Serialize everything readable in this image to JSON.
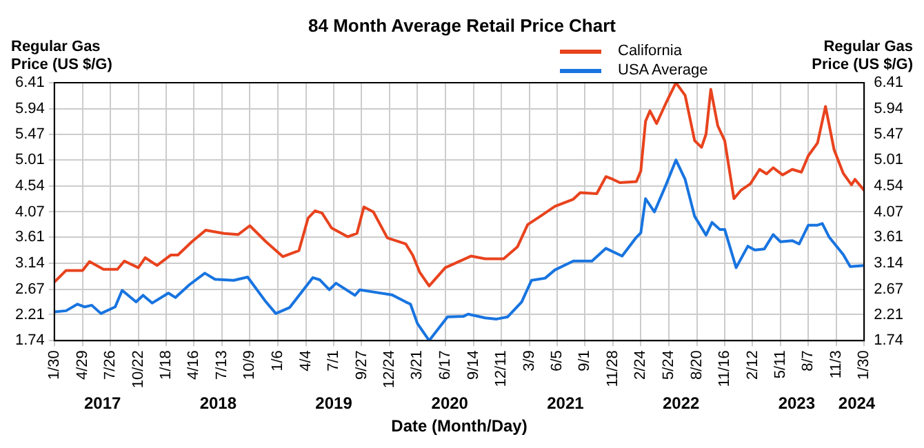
{
  "chart_data": {
    "type": "line",
    "title": "84 Month Average Retail Price Chart",
    "xlabel": "Date (Month/Day)",
    "ylabel": "Regular Gas Price (US $/G)",
    "y2label": "Regular Gas Price (US $/G)",
    "legend": "top",
    "grid": true,
    "marker": "none",
    "line_style": "solid",
    "xlim": [
      "2017-01-30",
      "2024-01-30"
    ],
    "xticks": [
      {
        "value": "2017-01-30",
        "label": "1/30"
      },
      {
        "value": "2017-04-29",
        "label": "4/29"
      },
      {
        "value": "2017-07-26",
        "label": "7/26"
      },
      {
        "value": "2017-10-22",
        "label": "10/22"
      },
      {
        "value": "2018-01-18",
        "label": "1/18"
      },
      {
        "value": "2018-04-16",
        "label": "4/16"
      },
      {
        "value": "2018-07-13",
        "label": "7/13"
      },
      {
        "value": "2018-10-09",
        "label": "10/9"
      },
      {
        "value": "2019-01-06",
        "label": "1/6"
      },
      {
        "value": "2019-04-04",
        "label": "4/4"
      },
      {
        "value": "2019-07-01",
        "label": "7/1"
      },
      {
        "value": "2019-09-27",
        "label": "9/27"
      },
      {
        "value": "2019-12-24",
        "label": "12/24"
      },
      {
        "value": "2020-03-21",
        "label": "3/21"
      },
      {
        "value": "2020-06-17",
        "label": "6/17"
      },
      {
        "value": "2020-09-14",
        "label": "9/14"
      },
      {
        "value": "2020-12-11",
        "label": "12/11"
      },
      {
        "value": "2021-03-09",
        "label": "3/9"
      },
      {
        "value": "2021-06-05",
        "label": "6/5"
      },
      {
        "value": "2021-09-01",
        "label": "9/1"
      },
      {
        "value": "2021-11-28",
        "label": "11/28"
      },
      {
        "value": "2022-02-24",
        "label": "2/24"
      },
      {
        "value": "2022-05-24",
        "label": "5/24"
      },
      {
        "value": "2022-08-20",
        "label": "8/20"
      },
      {
        "value": "2022-11-16",
        "label": "11/16"
      },
      {
        "value": "2023-02-12",
        "label": "2/12"
      },
      {
        "value": "2023-05-11",
        "label": "5/11"
      },
      {
        "value": "2023-08-07",
        "label": "8/7"
      },
      {
        "value": "2023-11-03",
        "label": "11/3"
      },
      {
        "value": "2024-01-30",
        "label": "1/30"
      }
    ],
    "ylim": [
      1.74,
      6.41
    ],
    "yticks": [
      1.74,
      2.21,
      2.67,
      3.14,
      3.61,
      4.07,
      4.54,
      5.01,
      5.47,
      5.94,
      6.41
    ],
    "y2lim": [
      1.74,
      6.41
    ],
    "y2ticks": [
      1.74,
      2.21,
      2.67,
      3.14,
      3.61,
      4.07,
      4.54,
      5.01,
      5.47,
      5.94,
      6.41
    ],
    "annotations": [
      "2017",
      "2018",
      "2019",
      "2020",
      "2021",
      "2022",
      "2023",
      "2024"
    ],
    "series": [
      {
        "name": "California",
        "color": "#e8431e",
        "x": [
          "2017-01-30",
          "2017-03-08",
          "2017-04-29",
          "2017-05-21",
          "2017-07-04",
          "2017-08-17",
          "2017-09-08",
          "2017-10-22",
          "2017-11-13",
          "2017-12-20",
          "2018-02-02",
          "2018-02-24",
          "2018-04-09",
          "2018-05-23",
          "2018-07-20",
          "2018-09-02",
          "2018-10-09",
          "2018-11-29",
          "2019-01-21",
          "2019-03-13",
          "2019-04-11",
          "2019-05-03",
          "2019-05-25",
          "2019-06-24",
          "2019-08-14",
          "2019-09-12",
          "2019-10-04",
          "2019-11-03",
          "2019-12-17",
          "2020-02-13",
          "2020-03-06",
          "2020-03-28",
          "2020-04-27",
          "2020-06-17",
          "2020-09-06",
          "2020-10-21",
          "2020-12-18",
          "2021-01-31",
          "2021-03-04",
          "2021-04-15",
          "2021-05-29",
          "2021-07-26",
          "2021-08-17",
          "2021-10-08",
          "2021-11-06",
          "2021-11-28",
          "2021-12-20",
          "2022-02-10",
          "2022-02-24",
          "2022-03-11",
          "2022-03-25",
          "2022-04-15",
          "2022-05-16",
          "2022-06-15",
          "2022-07-14",
          "2022-08-13",
          "2022-09-04",
          "2022-09-18",
          "2022-10-03",
          "2022-10-25",
          "2022-11-16",
          "2022-12-15",
          "2023-01-06",
          "2023-02-05",
          "2023-03-06",
          "2023-03-28",
          "2023-04-18",
          "2023-05-18",
          "2023-06-17",
          "2023-07-16",
          "2023-08-07",
          "2023-09-05",
          "2023-09-30",
          "2023-10-27",
          "2023-11-25",
          "2023-12-21",
          "2024-01-01",
          "2024-01-30"
        ],
        "values": [
          2.8,
          3.01,
          3.01,
          3.17,
          3.03,
          3.03,
          3.18,
          3.06,
          3.24,
          3.1,
          3.29,
          3.29,
          3.53,
          3.74,
          3.68,
          3.66,
          3.82,
          3.53,
          3.26,
          3.37,
          3.96,
          4.09,
          4.05,
          3.78,
          3.62,
          3.68,
          4.16,
          4.07,
          3.6,
          3.49,
          3.29,
          2.98,
          2.73,
          3.06,
          3.27,
          3.22,
          3.22,
          3.44,
          3.84,
          4.0,
          4.17,
          4.3,
          4.42,
          4.4,
          4.71,
          4.66,
          4.6,
          4.62,
          4.81,
          5.71,
          5.9,
          5.67,
          6.06,
          6.41,
          6.18,
          5.36,
          5.24,
          5.48,
          6.29,
          5.63,
          5.36,
          4.31,
          4.46,
          4.58,
          4.84,
          4.76,
          4.87,
          4.74,
          4.84,
          4.79,
          5.09,
          5.32,
          5.98,
          5.2,
          4.77,
          4.56,
          4.66,
          4.46
        ]
      },
      {
        "name": "USA Average",
        "color": "#1874e0",
        "x": [
          "2017-01-30",
          "2017-03-08",
          "2017-04-13",
          "2017-05-06",
          "2017-05-28",
          "2017-06-26",
          "2017-08-10",
          "2017-09-01",
          "2017-10-15",
          "2017-11-06",
          "2017-12-05",
          "2018-01-25",
          "2018-02-16",
          "2018-04-01",
          "2018-05-20",
          "2018-06-21",
          "2018-08-19",
          "2018-10-02",
          "2018-11-29",
          "2018-12-30",
          "2019-02-12",
          "2019-04-26",
          "2019-05-18",
          "2019-06-17",
          "2019-07-08",
          "2019-09-06",
          "2019-09-21",
          "2019-11-03",
          "2019-12-31",
          "2020-02-13",
          "2020-02-28",
          "2020-03-21",
          "2020-04-27",
          "2020-06-24",
          "2020-08-14",
          "2020-08-28",
          "2020-10-21",
          "2020-11-26",
          "2020-12-31",
          "2021-02-13",
          "2021-03-16",
          "2021-04-28",
          "2021-05-29",
          "2021-07-26",
          "2021-09-23",
          "2021-11-06",
          "2021-12-27",
          "2022-02-10",
          "2022-02-24",
          "2022-03-11",
          "2022-04-08",
          "2022-05-16",
          "2022-06-15",
          "2022-07-14",
          "2022-08-13",
          "2022-09-18",
          "2022-10-07",
          "2022-11-01",
          "2022-11-16",
          "2022-12-22",
          "2023-01-06",
          "2023-01-28",
          "2023-02-19",
          "2023-03-21",
          "2023-04-18",
          "2023-05-11",
          "2023-06-17",
          "2023-07-09",
          "2023-08-07",
          "2023-09-05",
          "2023-09-20",
          "2023-10-12",
          "2023-11-25",
          "2023-12-17",
          "2024-01-30"
        ],
        "values": [
          2.26,
          2.28,
          2.4,
          2.35,
          2.38,
          2.23,
          2.35,
          2.65,
          2.44,
          2.56,
          2.42,
          2.6,
          2.52,
          2.75,
          2.96,
          2.85,
          2.83,
          2.89,
          2.44,
          2.23,
          2.34,
          2.88,
          2.84,
          2.66,
          2.78,
          2.56,
          2.66,
          2.62,
          2.57,
          2.44,
          2.4,
          2.05,
          1.74,
          2.17,
          2.18,
          2.22,
          2.15,
          2.13,
          2.17,
          2.44,
          2.83,
          2.87,
          3.02,
          3.18,
          3.18,
          3.41,
          3.27,
          3.61,
          3.69,
          4.31,
          4.07,
          4.58,
          5.01,
          4.66,
          3.99,
          3.65,
          3.88,
          3.75,
          3.75,
          3.06,
          3.22,
          3.45,
          3.38,
          3.4,
          3.66,
          3.53,
          3.55,
          3.49,
          3.83,
          3.83,
          3.86,
          3.61,
          3.3,
          3.08,
          3.1
        ]
      }
    ]
  }
}
